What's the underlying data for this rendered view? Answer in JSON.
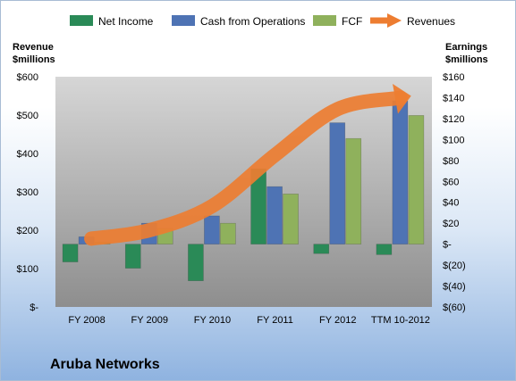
{
  "chart_data": {
    "type": "bar",
    "title": "Aruba Networks",
    "categories": [
      "FY 2008",
      "FY 2009",
      "FY 2010",
      "FY 2011",
      "FY 2012",
      "TTM 10-2012"
    ],
    "series": [
      {
        "name": "Net Income",
        "axis": "right",
        "kind": "bar",
        "color": "#2a8a57",
        "values": [
          -17,
          -23,
          -35,
          72,
          -9,
          -10
        ]
      },
      {
        "name": "Cash from Operations",
        "axis": "right",
        "kind": "bar",
        "color": "#4e73b4",
        "values": [
          7,
          20,
          27,
          55,
          116,
          137
        ]
      },
      {
        "name": "FCF",
        "axis": "right",
        "kind": "bar",
        "color": "#8fb15c",
        "values": [
          2,
          15,
          20,
          48,
          101,
          123
        ]
      },
      {
        "name": "Revenues",
        "axis": "left",
        "kind": "arrow-line",
        "color": "#ed7d31",
        "values": [
          178,
          200,
          263,
          396,
          516,
          545
        ]
      }
    ],
    "left_axis": {
      "title_lines": [
        "Revenue",
        "$millions"
      ],
      "min": 0,
      "max": 600,
      "ticks": [
        {
          "value": 0,
          "label": "$-"
        },
        {
          "value": 100,
          "label": "$100"
        },
        {
          "value": 200,
          "label": "$200"
        },
        {
          "value": 300,
          "label": "$300"
        },
        {
          "value": 400,
          "label": "$400"
        },
        {
          "value": 500,
          "label": "$500"
        },
        {
          "value": 600,
          "label": "$600"
        }
      ]
    },
    "right_axis": {
      "title_lines": [
        "Earnings",
        "$millions"
      ],
      "min": -60,
      "max": 160,
      "ticks": [
        {
          "value": -60,
          "label": "$(60)"
        },
        {
          "value": -40,
          "label": "$(40)"
        },
        {
          "value": -20,
          "label": "$(20)"
        },
        {
          "value": 0,
          "label": "$-"
        },
        {
          "value": 20,
          "label": "$20"
        },
        {
          "value": 40,
          "label": "$40"
        },
        {
          "value": 60,
          "label": "$60"
        },
        {
          "value": 80,
          "label": "$80"
        },
        {
          "value": 100,
          "label": "$100"
        },
        {
          "value": 120,
          "label": "$120"
        },
        {
          "value": 140,
          "label": "$140"
        },
        {
          "value": 160,
          "label": "$160"
        }
      ]
    },
    "legend_placement": "top",
    "grid": false
  }
}
